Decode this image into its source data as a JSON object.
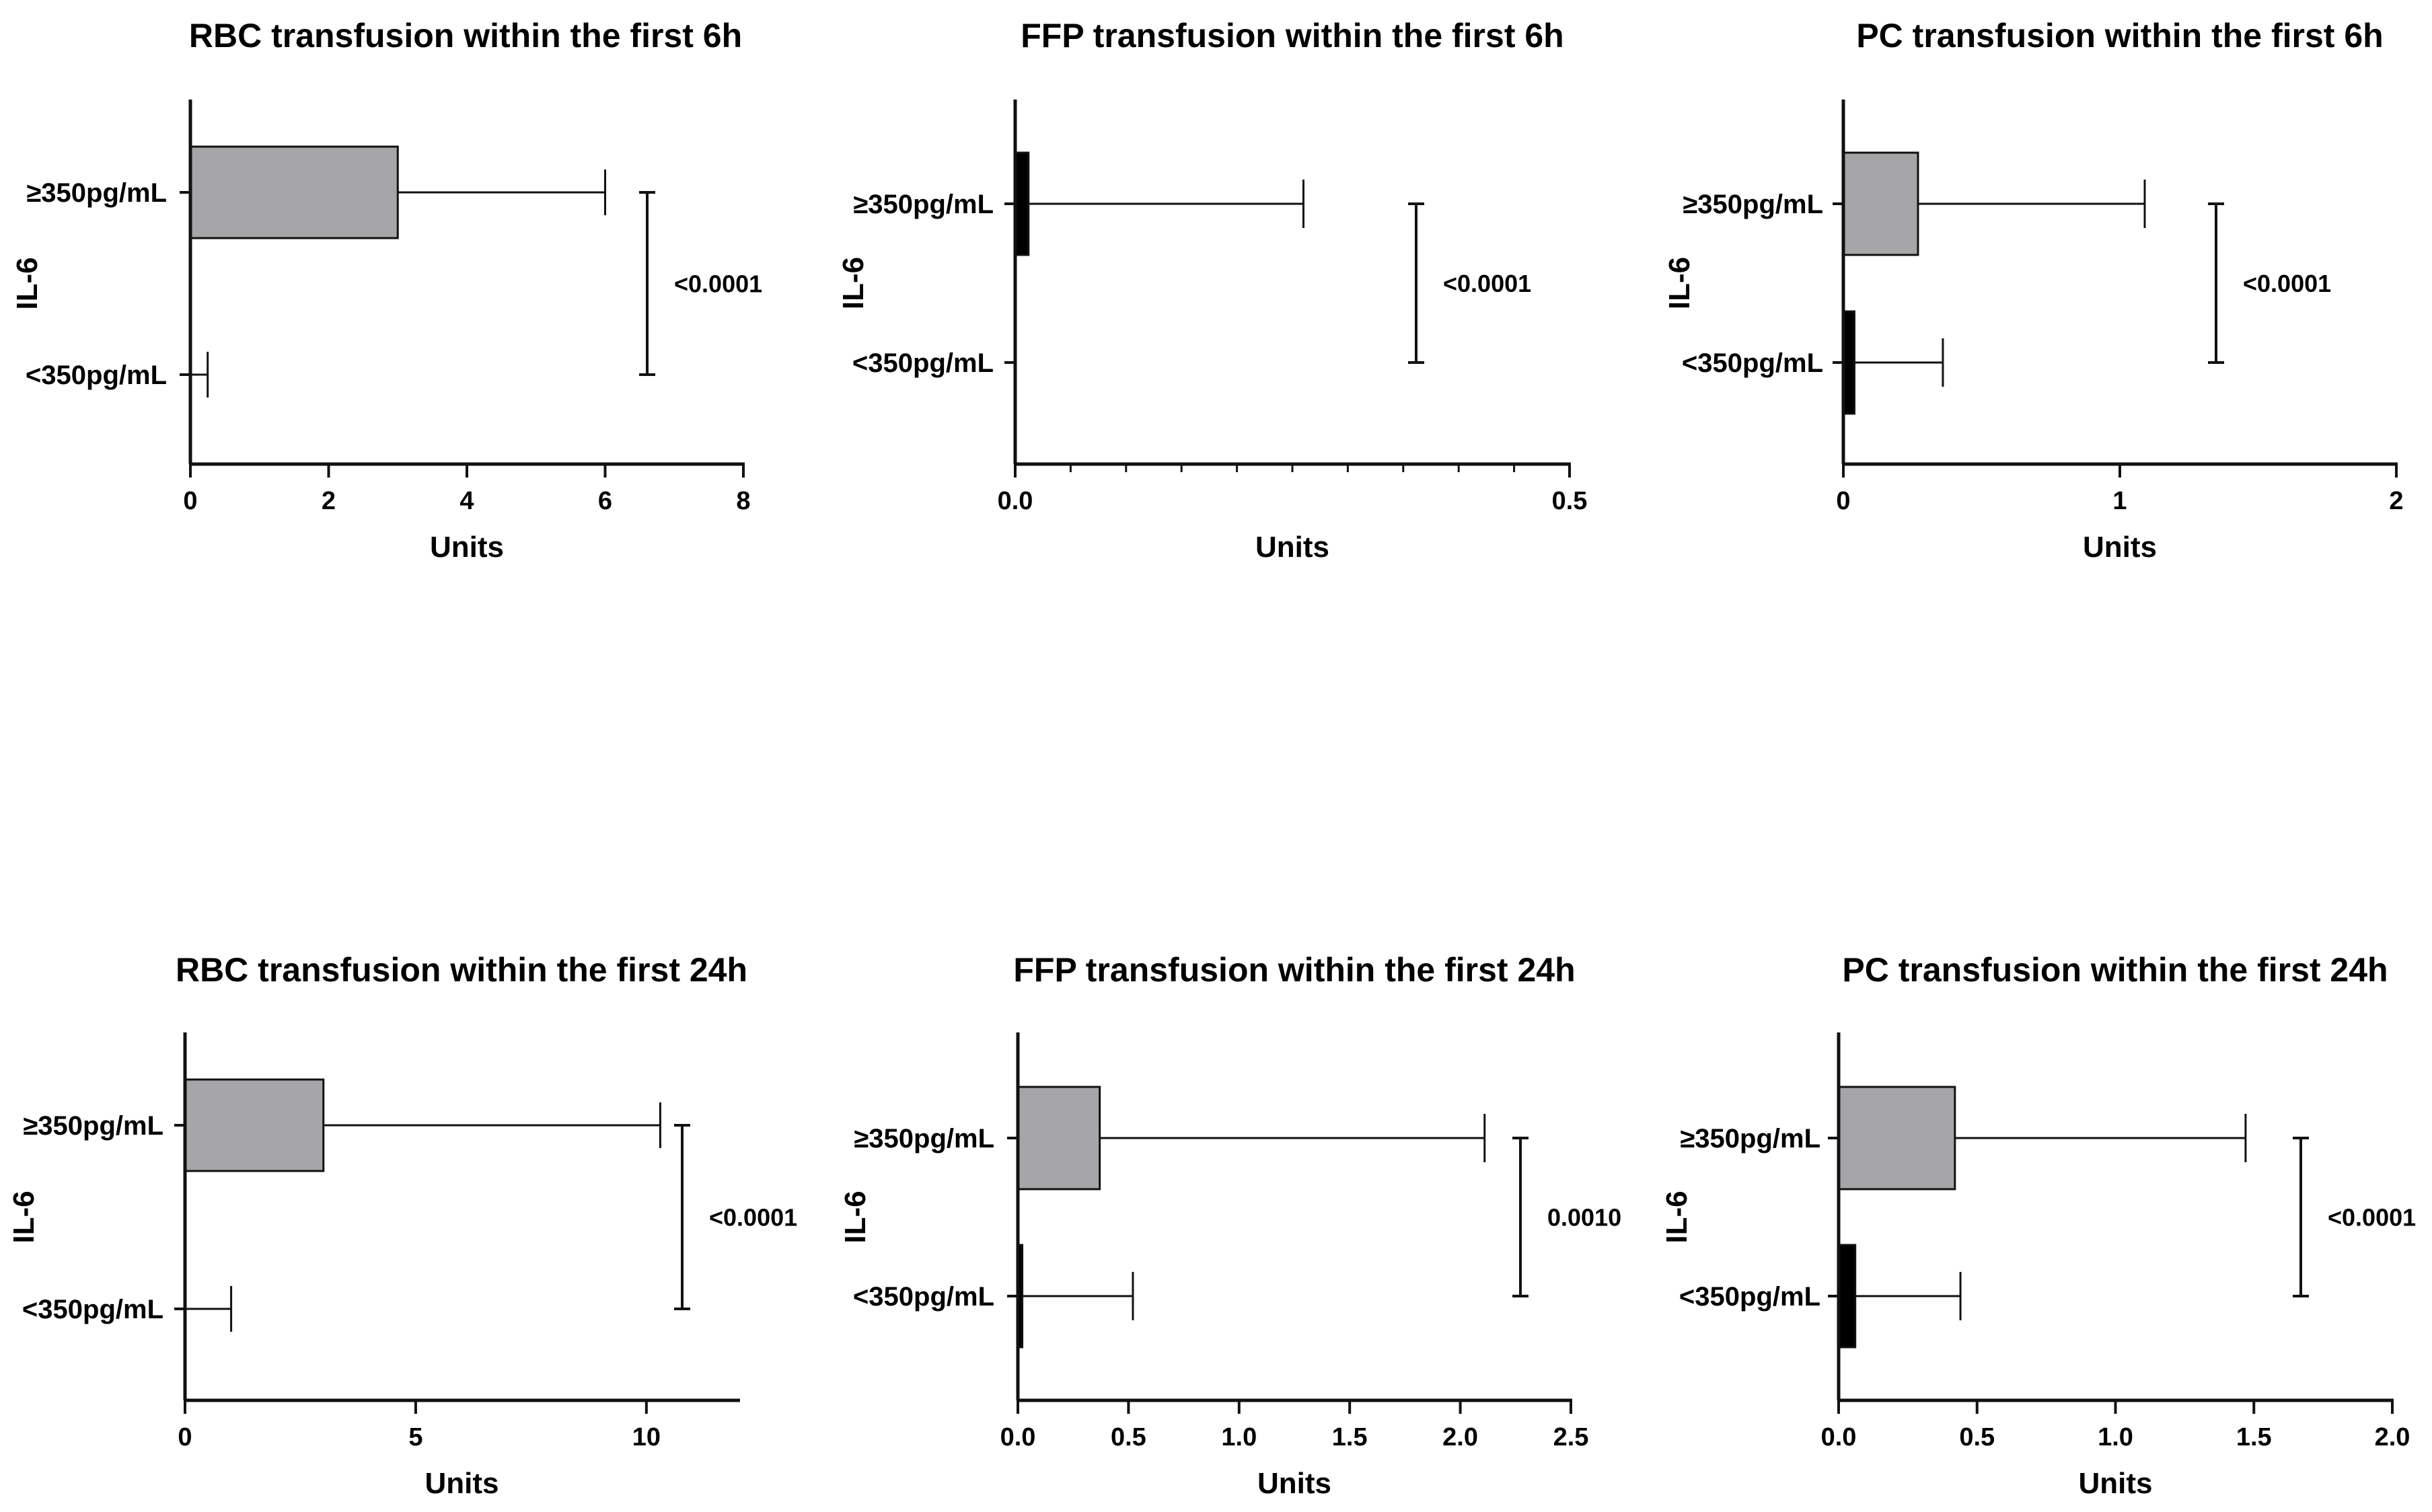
{
  "chart_data": [
    {
      "type": "bar",
      "orientation": "horizontal",
      "title": "RBC transfusion within the first 6h",
      "xlabel": "Units",
      "ylabel": "IL-6",
      "categories": [
        "≥350pg/mL",
        "<350pg/mL"
      ],
      "values": [
        3,
        0
      ],
      "error_upper": [
        6,
        0.25
      ],
      "bar_colors": [
        "#a6a6a8",
        "#000000"
      ],
      "xlim": [
        0,
        8
      ],
      "major_ticks": [
        0,
        2,
        4,
        6,
        8
      ],
      "tick_labels": [
        "0",
        "2",
        "4",
        "6",
        "8"
      ],
      "minor_ticks": [],
      "p_value": "<0.0001"
    },
    {
      "type": "bar",
      "orientation": "horizontal",
      "title": "FFP transfusion within the first 6h",
      "xlabel": "Units",
      "ylabel": "IL-6",
      "categories": [
        "≥350pg/mL",
        "<350pg/mL"
      ],
      "values": [
        0.012,
        0
      ],
      "error_upper": [
        0.26,
        0
      ],
      "bar_colors": [
        "#000000",
        "#000000"
      ],
      "xlim": [
        0,
        0.5
      ],
      "major_ticks": [
        0,
        0.5
      ],
      "tick_labels": [
        "0.0",
        "0.5"
      ],
      "minor_ticks": [
        0.05,
        0.1,
        0.15,
        0.2,
        0.25,
        0.3,
        0.35,
        0.4,
        0.45
      ],
      "p_value": "<0.0001"
    },
    {
      "type": "bar",
      "orientation": "horizontal",
      "title": "PC transfusion within the first 6h",
      "xlabel": "Units",
      "ylabel": "IL-6",
      "categories": [
        "≥350pg/mL",
        "<350pg/mL"
      ],
      "values": [
        0.27,
        0.04
      ],
      "error_upper": [
        1.09,
        0.36
      ],
      "bar_colors": [
        "#a6a6a8",
        "#000000"
      ],
      "xlim": [
        0,
        2
      ],
      "major_ticks": [
        0,
        1,
        2
      ],
      "tick_labels": [
        "0",
        "1",
        "2"
      ],
      "minor_ticks": [],
      "p_value": "<0.0001"
    },
    {
      "type": "bar",
      "orientation": "horizontal",
      "title": "RBC transfusion within the first 24h",
      "xlabel": "Units",
      "ylabel": "IL-6",
      "categories": [
        "≥350pg/mL",
        "<350pg/mL"
      ],
      "values": [
        3,
        0
      ],
      "error_upper": [
        10.3,
        1
      ],
      "bar_colors": [
        "#a6a6a8",
        "#000000"
      ],
      "xlim": [
        0,
        12
      ],
      "major_ticks": [
        0,
        5,
        10
      ],
      "tick_labels": [
        "0",
        "5",
        "10"
      ],
      "minor_ticks": [],
      "p_value": "<0.0001"
    },
    {
      "type": "bar",
      "orientation": "horizontal",
      "title": "FFP transfusion within the first 24h",
      "xlabel": "Units",
      "ylabel": "IL-6",
      "categories": [
        "≥350pg/mL",
        "<350pg/mL"
      ],
      "values": [
        0.37,
        0.02
      ],
      "error_upper": [
        2.11,
        0.52
      ],
      "bar_colors": [
        "#a6a6a8",
        "#000000"
      ],
      "xlim": [
        0,
        2.5
      ],
      "major_ticks": [
        0,
        0.5,
        1,
        1.5,
        2,
        2.5
      ],
      "tick_labels": [
        "0.0",
        "0.5",
        "1.0",
        "1.5",
        "2.0",
        "2.5"
      ],
      "minor_ticks": [],
      "p_value": "0.0010"
    },
    {
      "type": "bar",
      "orientation": "horizontal",
      "title": "PC transfusion within the first 24h",
      "xlabel": "Units",
      "ylabel": "IL-6",
      "categories": [
        "≥350pg/mL",
        "<350pg/mL"
      ],
      "values": [
        0.42,
        0.06
      ],
      "error_upper": [
        1.47,
        0.44
      ],
      "bar_colors": [
        "#a6a6a8",
        "#000000"
      ],
      "xlim": [
        0,
        2
      ],
      "major_ticks": [
        0,
        0.5,
        1,
        1.5,
        2
      ],
      "tick_labels": [
        "0.0",
        "0.5",
        "1.0",
        "1.5",
        "2.0"
      ],
      "minor_ticks": [],
      "p_value": "<0.0001"
    }
  ]
}
